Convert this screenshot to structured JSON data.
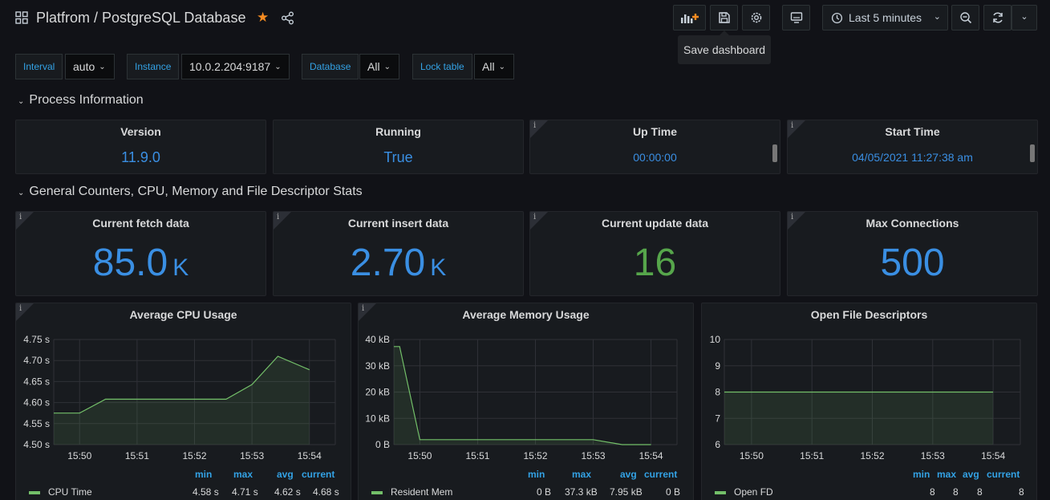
{
  "header": {
    "title": "Platfrom / PostgreSQL Database",
    "tooltip": "Save dashboard",
    "time_range": "Last 5 minutes"
  },
  "variables": [
    {
      "label": "Interval",
      "value": "auto"
    },
    {
      "label": "Instance",
      "value": "10.0.2.204:9187"
    },
    {
      "label": "Database",
      "value": "All"
    },
    {
      "label": "Lock table",
      "value": "All"
    }
  ],
  "rows": {
    "process": "Process Information",
    "general": "General Counters, CPU, Memory and File Descriptor Stats"
  },
  "process_panels": [
    {
      "title": "Version",
      "value": "11.9.0"
    },
    {
      "title": "Running",
      "value": "True"
    },
    {
      "title": "Up Time",
      "value": "00:00:00"
    },
    {
      "title": "Start Time",
      "value": "04/05/2021 11:27:38 am"
    }
  ],
  "stat_panels": [
    {
      "title": "Current fetch data",
      "value": "85.0",
      "unit": "K",
      "color": "#3a8fe3"
    },
    {
      "title": "Current insert data",
      "value": "2.70",
      "unit": "K",
      "color": "#3a8fe3"
    },
    {
      "title": "Current update data",
      "value": "16",
      "unit": "",
      "color": "#56a64b"
    },
    {
      "title": "Max Connections",
      "value": "500",
      "unit": "",
      "color": "#3a8fe3"
    }
  ],
  "legend_headers": {
    "min": "min",
    "max": "max",
    "avg": "avg",
    "current": "current"
  },
  "colors": {
    "series": "#73bf69",
    "accent": "#33a2e5",
    "star": "#f58b21"
  },
  "chart_data": [
    {
      "type": "area",
      "title": "Average CPU Usage",
      "x_ticks": [
        "15:50",
        "15:51",
        "15:52",
        "15:53",
        "15:54"
      ],
      "y_ticks": [
        "4.50 s",
        "4.55 s",
        "4.60 s",
        "4.65 s",
        "4.70 s",
        "4.75 s"
      ],
      "ylim": [
        4.5,
        4.75
      ],
      "xlim": [
        49.55,
        54.45
      ],
      "series": [
        {
          "name": "CPU Time",
          "x": [
            49.55,
            50.0,
            50.45,
            51.0,
            51.55,
            52.0,
            52.55,
            53.0,
            53.45,
            54.0
          ],
          "y": [
            4.575,
            4.575,
            4.608,
            4.608,
            4.608,
            4.608,
            4.608,
            4.643,
            4.71,
            4.678
          ],
          "min": "4.58 s",
          "max": "4.71 s",
          "avg": "4.62 s",
          "current": "4.68 s"
        }
      ]
    },
    {
      "type": "area",
      "title": "Average Memory Usage",
      "x_ticks": [
        "15:50",
        "15:51",
        "15:52",
        "15:53",
        "15:54"
      ],
      "y_ticks": [
        "0 B",
        "10 kB",
        "20 kB",
        "30 kB",
        "40 kB"
      ],
      "ylim": [
        0,
        40
      ],
      "xlim": [
        49.55,
        54.45
      ],
      "series": [
        {
          "name": "Resident Mem",
          "x": [
            49.55,
            49.65,
            50.0,
            50.5,
            51.0,
            51.5,
            52.0,
            52.5,
            53.0,
            53.5,
            54.0
          ],
          "y": [
            37.3,
            37.3,
            1.9,
            1.9,
            1.9,
            1.9,
            1.9,
            1.9,
            1.9,
            0,
            0
          ],
          "min": "0 B",
          "max": "37.3 kB",
          "avg": "7.95 kB",
          "current": "0 B"
        }
      ]
    },
    {
      "type": "area",
      "title": "Open File Descriptors",
      "x_ticks": [
        "15:50",
        "15:51",
        "15:52",
        "15:53",
        "15:54"
      ],
      "y_ticks": [
        "6",
        "7",
        "8",
        "9",
        "10"
      ],
      "ylim": [
        6,
        10
      ],
      "xlim": [
        49.55,
        54.45
      ],
      "series": [
        {
          "name": "Open FD",
          "x": [
            49.55,
            54.0
          ],
          "y": [
            8,
            8
          ],
          "min": "8",
          "max": "8",
          "avg": "8",
          "current": "8"
        }
      ]
    }
  ]
}
